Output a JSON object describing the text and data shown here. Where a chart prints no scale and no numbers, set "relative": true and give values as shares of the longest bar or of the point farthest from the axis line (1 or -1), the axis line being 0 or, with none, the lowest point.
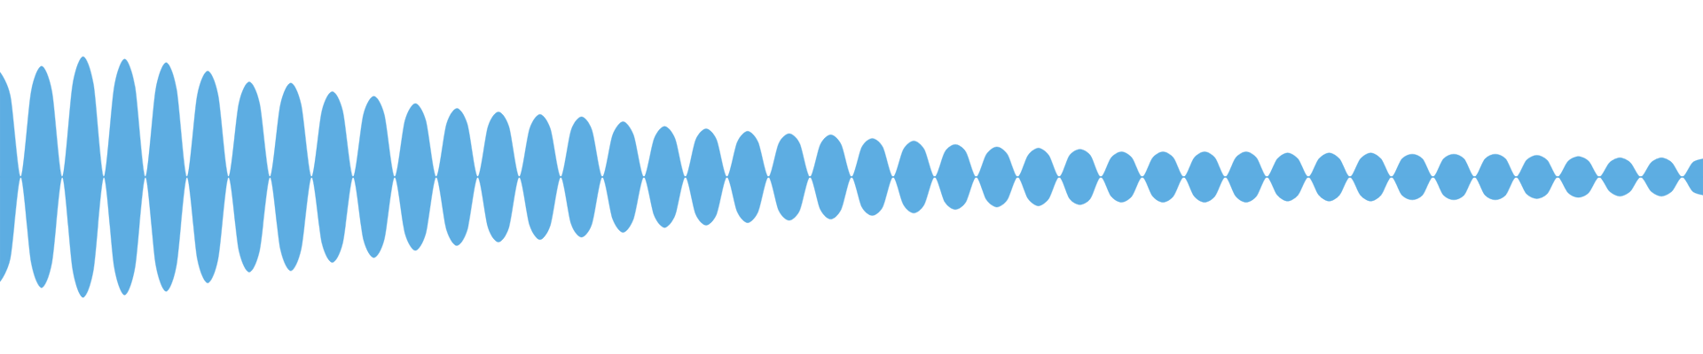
{
  "chart_data": {
    "type": "area",
    "relative": true,
    "categories": [
      null,
      null,
      null,
      null,
      null,
      null,
      null,
      null,
      null,
      null,
      null,
      null,
      null,
      null,
      null,
      null,
      null,
      null,
      null,
      null,
      null,
      null,
      null,
      null,
      null,
      null,
      null,
      null,
      null,
      null,
      null,
      null,
      null,
      null,
      null,
      null,
      null,
      null,
      null,
      null,
      null,
      null,
      null,
      null,
      null,
      null,
      null,
      null,
      null,
      null,
      null,
      null,
      null,
      null,
      null,
      null,
      null,
      null,
      null,
      null,
      null,
      null,
      null,
      null,
      null,
      null,
      null,
      null,
      null,
      null,
      null,
      null,
      null,
      null,
      null,
      null,
      null,
      null,
      null,
      null,
      null,
      null,
      null,
      null,
      null,
      null,
      null,
      null,
      null,
      null,
      null,
      null,
      null,
      null,
      null,
      null,
      null,
      null,
      null,
      null,
      null,
      null,
      null,
      null,
      null,
      null,
      null,
      null,
      null,
      null,
      null,
      null,
      null,
      null,
      null,
      null,
      null,
      null,
      null,
      null,
      null,
      null,
      null,
      null,
      null,
      null,
      null,
      null,
      null,
      null,
      null,
      null,
      null,
      null,
      null,
      null,
      null,
      null,
      null,
      null,
      null,
      null,
      null,
      null,
      null,
      null,
      null,
      null,
      null,
      null,
      null,
      null,
      null,
      null,
      null,
      null,
      null,
      null,
      null,
      null,
      null,
      null,
      null,
      null,
      null
    ],
    "series": [
      {
        "color": "#5dade2",
        "values": [
          0.87,
          0.67,
          0,
          0.71,
          0.92,
          0.71,
          0,
          0.77,
          1,
          0.77,
          0,
          0.75,
          0.98,
          0.75,
          0,
          0.73,
          0.95,
          0.73,
          0,
          0.68,
          0.88,
          0.68,
          0,
          0.61,
          0.79,
          0.61,
          0,
          0.6,
          0.78,
          0.6,
          0,
          0.55,
          0.71,
          0.55,
          0,
          0.52,
          0.67,
          0.52,
          0,
          0.47,
          0.61,
          0.47,
          0,
          0.44,
          0.57,
          0.44,
          0,
          0.42,
          0.54,
          0.42,
          0,
          0.4,
          0.52,
          0.4,
          0,
          0.39,
          0.5,
          0.39,
          0,
          0.35,
          0.46,
          0.35,
          0,
          0.32,
          0.42,
          0.32,
          0,
          0.31,
          0.4,
          0.31,
          0,
          0.29,
          0.38,
          0.29,
          0,
          0.28,
          0.36,
          0.28,
          0,
          0.27,
          0.35,
          0.27,
          0,
          0.25,
          0.32,
          0.25,
          0,
          0.23,
          0.3,
          0.23,
          0,
          0.21,
          0.27,
          0.21,
          0,
          0.19,
          0.25,
          0.19,
          0,
          0.18,
          0.24,
          0.18,
          0,
          0.18,
          0.23,
          0.18,
          0,
          0.16,
          0.21,
          0.16,
          0,
          0.16,
          0.21,
          0.16,
          0,
          0.16,
          0.21,
          0.16,
          0,
          0.16,
          0.21,
          0.16,
          0,
          0.15,
          0.2,
          0.15,
          0,
          0.15,
          0.2,
          0.15,
          0,
          0.15,
          0.2,
          0.15,
          0,
          0.15,
          0.19,
          0.15,
          0,
          0.15,
          0.19,
          0.15,
          0,
          0.15,
          0.19,
          0.15,
          0,
          0.14,
          0.18,
          0.14,
          0,
          0.13,
          0.17,
          0.13,
          0,
          0.12,
          0.16,
          0.12,
          0,
          0.12,
          0.16,
          0.12,
          0,
          0.12,
          0.15
        ]
      },
      {
        "color": "#5dade2",
        "values": [
          -0.87,
          -0.67,
          0,
          -0.71,
          -0.92,
          -0.71,
          0,
          -0.77,
          -1,
          -0.77,
          0,
          -0.75,
          -0.98,
          -0.75,
          0,
          -0.73,
          -0.95,
          -0.73,
          0,
          -0.68,
          -0.88,
          -0.68,
          0,
          -0.61,
          -0.79,
          -0.61,
          0,
          -0.6,
          -0.78,
          -0.6,
          0,
          -0.55,
          -0.71,
          -0.55,
          0,
          -0.52,
          -0.67,
          -0.52,
          0,
          -0.47,
          -0.61,
          -0.47,
          0,
          -0.44,
          -0.57,
          -0.44,
          0,
          -0.42,
          -0.54,
          -0.42,
          0,
          -0.4,
          -0.52,
          -0.4,
          0,
          -0.39,
          -0.5,
          -0.39,
          0,
          -0.35,
          -0.46,
          -0.35,
          0,
          -0.32,
          -0.42,
          -0.32,
          0,
          -0.31,
          -0.4,
          -0.31,
          0,
          -0.29,
          -0.38,
          -0.29,
          0,
          -0.28,
          -0.36,
          -0.28,
          0,
          -0.27,
          -0.35,
          -0.27,
          0,
          -0.25,
          -0.32,
          -0.25,
          0,
          -0.23,
          -0.3,
          -0.23,
          0,
          -0.21,
          -0.27,
          -0.21,
          0,
          -0.19,
          -0.25,
          -0.19,
          0,
          -0.18,
          -0.24,
          -0.18,
          0,
          -0.18,
          -0.23,
          -0.18,
          0,
          -0.16,
          -0.21,
          -0.16,
          0,
          -0.16,
          -0.21,
          -0.16,
          0,
          -0.16,
          -0.21,
          -0.16,
          0,
          -0.16,
          -0.21,
          -0.16,
          0,
          -0.15,
          -0.2,
          -0.15,
          0,
          -0.15,
          -0.2,
          -0.15,
          0,
          -0.15,
          -0.2,
          -0.15,
          0,
          -0.15,
          -0.19,
          -0.15,
          0,
          -0.15,
          -0.19,
          -0.15,
          0,
          -0.15,
          -0.19,
          -0.15,
          0,
          -0.14,
          -0.18,
          -0.14,
          0,
          -0.13,
          -0.17,
          -0.13,
          0,
          -0.12,
          -0.16,
          -0.12,
          0,
          -0.12,
          -0.16,
          -0.12,
          0,
          -0.12,
          -0.15
        ]
      }
    ],
    "ref_lines": [
      {
        "axis": "y",
        "value": 0,
        "color": "#5dade2"
      }
    ]
  }
}
